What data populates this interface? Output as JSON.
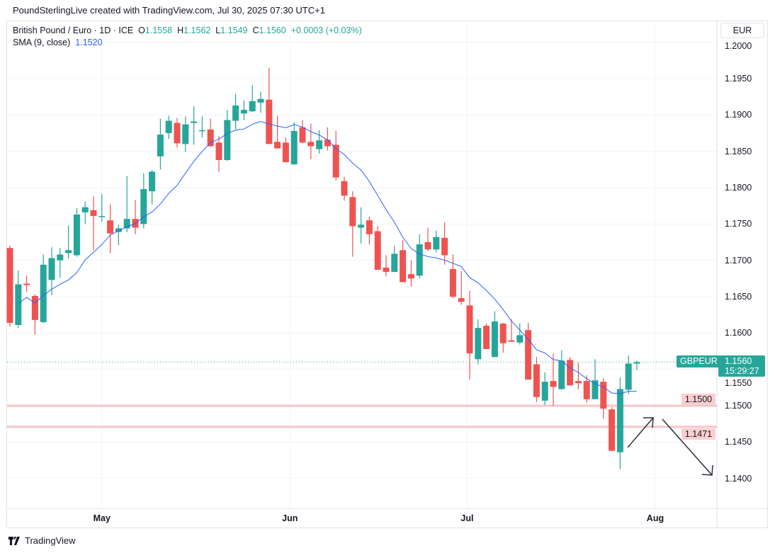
{
  "header": {
    "attribution": "PoundSterlingLive created with TradingView.com, Jul 30, 2025 07:30 UTC+1"
  },
  "legend": {
    "symbol": "British Pound / Euro · 1D · ICE",
    "o_label": "O",
    "o": "1.1558",
    "h_label": "H",
    "h": "1.1562",
    "l_label": "L",
    "l": "1.1549",
    "c_label": "C",
    "c": "1.1560",
    "change": "+0.0003 (+0.03%)",
    "sma_label": "SMA (9, close)",
    "sma_value": "1.1520"
  },
  "currency_button": "EUR",
  "tags": {
    "symbol": "GBPEUR",
    "last_price": "1.1560",
    "countdown": "15:29:27",
    "level1": "1.1500",
    "level2": "1.1471"
  },
  "footer": {
    "brand": "TradingView"
  },
  "colors": {
    "up": "#26a69a",
    "down": "#ef5350",
    "sma": "#2962ff",
    "level": "#f7c5c7"
  },
  "chart_data": {
    "type": "candlestick",
    "title": "British Pound / Euro · 1D · ICE",
    "ylim": [
      1.135,
      1.2015
    ],
    "yticks": [
      "1.2000",
      "1.1950",
      "1.1900",
      "1.1850",
      "1.1800",
      "1.1750",
      "1.1700",
      "1.1650",
      "1.1600",
      "1.1550",
      "1.1500",
      "1.1450",
      "1.1400"
    ],
    "xticks": [
      {
        "label": "May",
        "index": 11
      },
      {
        "label": "Jun",
        "index": 33.5
      },
      {
        "label": "Jul",
        "index": 54.7
      },
      {
        "label": "Aug",
        "index": 77.2
      }
    ],
    "sma_period": 9,
    "horizontal_levels": [
      1.15,
      1.1471
    ],
    "last_price": 1.156,
    "ohlc": [
      [
        1.1717,
        1.172,
        1.1609,
        1.1614
      ],
      [
        1.1611,
        1.1686,
        1.1607,
        1.1667
      ],
      [
        1.1668,
        1.1679,
        1.1657,
        1.1666
      ],
      [
        1.1651,
        1.1653,
        1.1598,
        1.1618
      ],
      [
        1.1615,
        1.1708,
        1.1614,
        1.1694
      ],
      [
        1.1673,
        1.1718,
        1.1652,
        1.1703
      ],
      [
        1.17,
        1.1717,
        1.1676,
        1.1708
      ],
      [
        1.171,
        1.1748,
        1.1702,
        1.1714
      ],
      [
        1.1707,
        1.1772,
        1.1705,
        1.1763
      ],
      [
        1.1766,
        1.1781,
        1.175,
        1.1773
      ],
      [
        1.1769,
        1.1788,
        1.1714,
        1.1761
      ],
      [
        1.176,
        1.1791,
        1.1753,
        1.1761
      ],
      [
        1.1755,
        1.1777,
        1.171,
        1.1737
      ],
      [
        1.1739,
        1.1749,
        1.1721,
        1.1744
      ],
      [
        1.1744,
        1.1816,
        1.1739,
        1.1757
      ],
      [
        1.1757,
        1.1783,
        1.1736,
        1.1745
      ],
      [
        1.175,
        1.182,
        1.1744,
        1.1798
      ],
      [
        1.1795,
        1.1824,
        1.1777,
        1.1822
      ],
      [
        1.1843,
        1.1895,
        1.1825,
        1.1873
      ],
      [
        1.1875,
        1.1899,
        1.1867,
        1.1892
      ],
      [
        1.1889,
        1.1896,
        1.1855,
        1.1861
      ],
      [
        1.186,
        1.1898,
        1.1849,
        1.1887
      ],
      [
        1.1889,
        1.1912,
        1.1859,
        1.1891
      ],
      [
        1.1878,
        1.1898,
        1.1869,
        1.1879
      ],
      [
        1.188,
        1.1895,
        1.1856,
        1.1857
      ],
      [
        1.1862,
        1.1871,
        1.1822,
        1.1838
      ],
      [
        1.1838,
        1.1907,
        1.1837,
        1.1893
      ],
      [
        1.1892,
        1.1929,
        1.188,
        1.1913
      ],
      [
        1.1902,
        1.192,
        1.1893,
        1.1907
      ],
      [
        1.1905,
        1.1941,
        1.1904,
        1.1919
      ],
      [
        1.1917,
        1.1932,
        1.1903,
        1.1922
      ],
      [
        1.1921,
        1.1965,
        1.186,
        1.186
      ],
      [
        1.1863,
        1.1899,
        1.1854,
        1.1854
      ],
      [
        1.1862,
        1.1869,
        1.1835,
        1.1835
      ],
      [
        1.1832,
        1.189,
        1.1832,
        1.1878
      ],
      [
        1.1883,
        1.1893,
        1.1861,
        1.1862
      ],
      [
        1.1863,
        1.1888,
        1.1839,
        1.1857
      ],
      [
        1.1853,
        1.1879,
        1.1847,
        1.1865
      ],
      [
        1.1866,
        1.1883,
        1.1851,
        1.1857
      ],
      [
        1.1859,
        1.1878,
        1.181,
        1.1814
      ],
      [
        1.1809,
        1.1815,
        1.1782,
        1.1789
      ],
      [
        1.1787,
        1.1795,
        1.1705,
        1.1747
      ],
      [
        1.1745,
        1.1773,
        1.1723,
        1.1749
      ],
      [
        1.1755,
        1.176,
        1.1722,
        1.1736
      ],
      [
        1.174,
        1.1747,
        1.1687,
        1.1687
      ],
      [
        1.169,
        1.1707,
        1.1678,
        1.1684
      ],
      [
        1.1684,
        1.172,
        1.1684,
        1.1709
      ],
      [
        1.1714,
        1.1728,
        1.167,
        1.167
      ],
      [
        1.1681,
        1.17,
        1.1664,
        1.1675
      ],
      [
        1.1679,
        1.1736,
        1.1675,
        1.1722
      ],
      [
        1.1725,
        1.1745,
        1.1713,
        1.1715
      ],
      [
        1.1715,
        1.1741,
        1.1711,
        1.1732
      ],
      [
        1.1731,
        1.1752,
        1.1694,
        1.1707
      ],
      [
        1.1688,
        1.1708,
        1.1648,
        1.165
      ],
      [
        1.1648,
        1.1685,
        1.1639,
        1.1643
      ],
      [
        1.1638,
        1.1658,
        1.1536,
        1.1572
      ],
      [
        1.1564,
        1.1619,
        1.1557,
        1.1607
      ],
      [
        1.161,
        1.1613,
        1.1578,
        1.1578
      ],
      [
        1.1567,
        1.163,
        1.1567,
        1.1616
      ],
      [
        1.1613,
        1.1614,
        1.1573,
        1.1586
      ],
      [
        1.159,
        1.1619,
        1.1588,
        1.1588
      ],
      [
        1.1587,
        1.1613,
        1.1584,
        1.1597
      ],
      [
        1.1604,
        1.1614,
        1.1536,
        1.1536
      ],
      [
        1.1557,
        1.1567,
        1.1505,
        1.1512
      ],
      [
        1.1507,
        1.1546,
        1.1501,
        1.1533
      ],
      [
        1.1534,
        1.1572,
        1.15,
        1.1526
      ],
      [
        1.1523,
        1.1576,
        1.1522,
        1.1562
      ],
      [
        1.1563,
        1.1567,
        1.1528,
        1.1528
      ],
      [
        1.1534,
        1.1559,
        1.1523,
        1.1531
      ],
      [
        1.1534,
        1.1542,
        1.1504,
        1.1509
      ],
      [
        1.1509,
        1.1564,
        1.1509,
        1.1535
      ],
      [
        1.1533,
        1.1538,
        1.1482,
        1.1496
      ],
      [
        1.1495,
        1.1498,
        1.1438,
        1.1438
      ],
      [
        1.1436,
        1.1539,
        1.1413,
        1.1523
      ],
      [
        1.1522,
        1.1569,
        1.1516,
        1.1558
      ],
      [
        1.1558,
        1.1562,
        1.1549,
        1.156
      ]
    ]
  }
}
